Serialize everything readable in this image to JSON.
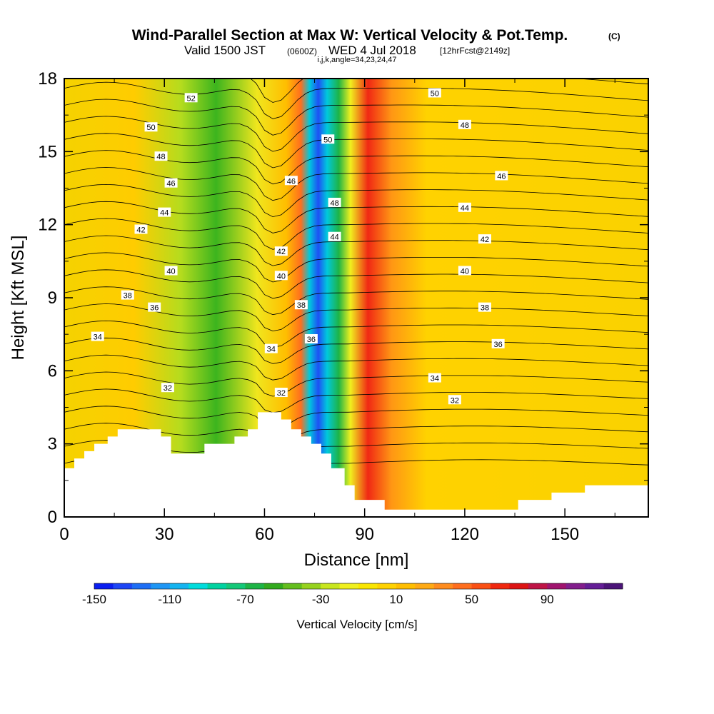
{
  "chart_data": {
    "type": "heatmap",
    "title": "Wind-Parallel Section at Max W: Vertical Velocity & Pot.Temp.",
    "title_tag": "(C)",
    "subtitle_valid": "Valid 1500 JST",
    "subtitle_utc": "(0600Z)",
    "subtitle_date": "WED 4 Jul 2018",
    "subtitle_fcst": "[12hrFcst@2149z]",
    "subtitle_indices": "i,j,k,angle=34,23,24,47",
    "xlabel": "Distance [nm]",
    "ylabel": "Height [Kft MSL]",
    "xlim": [
      0,
      175
    ],
    "ylim": [
      0,
      18
    ],
    "x_ticks": [
      "0",
      "30",
      "60",
      "90",
      "120",
      "150"
    ],
    "x_tick_values": [
      0,
      30,
      60,
      90,
      120,
      150
    ],
    "y_ticks": [
      "0",
      "3",
      "6",
      "9",
      "12",
      "15",
      "18"
    ],
    "y_tick_values": [
      0,
      3,
      6,
      9,
      12,
      15,
      18
    ],
    "colorbar_label": "Vertical Velocity [cm/s]",
    "colorbar_ticks": [
      "-150",
      "-110",
      "-70",
      "-30",
      "10",
      "50",
      "90"
    ],
    "colorbar_min": -150,
    "colorbar_max": 130,
    "colorbar_step": 10,
    "colorbar_colors": [
      "#0a1ef0",
      "#1e46f5",
      "#1e6ef5",
      "#1e96f5",
      "#14b4f0",
      "#00dcdc",
      "#00d2a0",
      "#14c878",
      "#1eb446",
      "#32aa1e",
      "#64be1e",
      "#96d21e",
      "#c8e61e",
      "#f0f01e",
      "#fae600",
      "#ffd200",
      "#ffbe00",
      "#ffaa14",
      "#ff8c1e",
      "#ff6e1e",
      "#fa5014",
      "#f0280f",
      "#dc1414",
      "#be1446",
      "#a0146e",
      "#821e8c",
      "#641e96",
      "#4b1478"
    ],
    "contour_variable": "Potential temperature (°C)",
    "theta_labels": [
      {
        "text": "52",
        "x": 38,
        "y": 17.2
      },
      {
        "text": "50",
        "x": 26,
        "y": 16.0
      },
      {
        "text": "48",
        "x": 29,
        "y": 14.8
      },
      {
        "text": "46",
        "x": 32,
        "y": 13.7
      },
      {
        "text": "44",
        "x": 30,
        "y": 12.5
      },
      {
        "text": "42",
        "x": 23,
        "y": 11.8
      },
      {
        "text": "40",
        "x": 32,
        "y": 10.1
      },
      {
        "text": "38",
        "x": 19,
        "y": 9.1
      },
      {
        "text": "36",
        "x": 27,
        "y": 8.6
      },
      {
        "text": "34",
        "x": 10,
        "y": 7.4
      },
      {
        "text": "32",
        "x": 31,
        "y": 5.3
      },
      {
        "text": "46",
        "x": 68,
        "y": 13.8
      },
      {
        "text": "42",
        "x": 65,
        "y": 10.9
      },
      {
        "text": "40",
        "x": 65,
        "y": 9.9
      },
      {
        "text": "38",
        "x": 71,
        "y": 8.7
      },
      {
        "text": "36",
        "x": 74,
        "y": 7.3
      },
      {
        "text": "34",
        "x": 62,
        "y": 6.9
      },
      {
        "text": "32",
        "x": 65,
        "y": 5.1
      },
      {
        "text": "50",
        "x": 79,
        "y": 15.5
      },
      {
        "text": "48",
        "x": 81,
        "y": 12.9
      },
      {
        "text": "44",
        "x": 81,
        "y": 11.5
      },
      {
        "text": "50",
        "x": 111,
        "y": 17.4
      },
      {
        "text": "48",
        "x": 120,
        "y": 16.1
      },
      {
        "text": "46",
        "x": 131,
        "y": 14.0
      },
      {
        "text": "44",
        "x": 120,
        "y": 12.7
      },
      {
        "text": "42",
        "x": 126,
        "y": 11.4
      },
      {
        "text": "40",
        "x": 120,
        "y": 10.1
      },
      {
        "text": "38",
        "x": 126,
        "y": 8.6
      },
      {
        "text": "36",
        "x": 130,
        "y": 7.1
      },
      {
        "text": "34",
        "x": 111,
        "y": 5.7
      },
      {
        "text": "32",
        "x": 117,
        "y": 4.8
      }
    ],
    "terrain_height_kft": [
      [
        0,
        2.0
      ],
      [
        3,
        2.0
      ],
      [
        3,
        2.4
      ],
      [
        6,
        2.4
      ],
      [
        6,
        2.7
      ],
      [
        9,
        2.7
      ],
      [
        9,
        3.0
      ],
      [
        13,
        3.0
      ],
      [
        13,
        3.3
      ],
      [
        16,
        3.3
      ],
      [
        16,
        3.6
      ],
      [
        29,
        3.6
      ],
      [
        29,
        3.3
      ],
      [
        32,
        3.3
      ],
      [
        32,
        2.6
      ],
      [
        42,
        2.6
      ],
      [
        42,
        3.0
      ],
      [
        51,
        3.0
      ],
      [
        51,
        3.3
      ],
      [
        55,
        3.3
      ],
      [
        55,
        3.6
      ],
      [
        58,
        3.6
      ],
      [
        58,
        4.3
      ],
      [
        65,
        4.3
      ],
      [
        65,
        4.0
      ],
      [
        68,
        4.0
      ],
      [
        68,
        3.6
      ],
      [
        71,
        3.6
      ],
      [
        71,
        3.3
      ],
      [
        74,
        3.3
      ],
      [
        74,
        3.0
      ],
      [
        77,
        3.0
      ],
      [
        77,
        2.6
      ],
      [
        80,
        2.6
      ],
      [
        80,
        2.0
      ],
      [
        84,
        2.0
      ],
      [
        84,
        1.3
      ],
      [
        87,
        1.3
      ],
      [
        87,
        0.7
      ],
      [
        96,
        0.7
      ],
      [
        96,
        0.3
      ],
      [
        136,
        0.3
      ],
      [
        136,
        0.7
      ],
      [
        146,
        0.7
      ],
      [
        146,
        1.0
      ],
      [
        156,
        1.0
      ],
      [
        156,
        1.3
      ],
      [
        175,
        1.3
      ]
    ]
  }
}
